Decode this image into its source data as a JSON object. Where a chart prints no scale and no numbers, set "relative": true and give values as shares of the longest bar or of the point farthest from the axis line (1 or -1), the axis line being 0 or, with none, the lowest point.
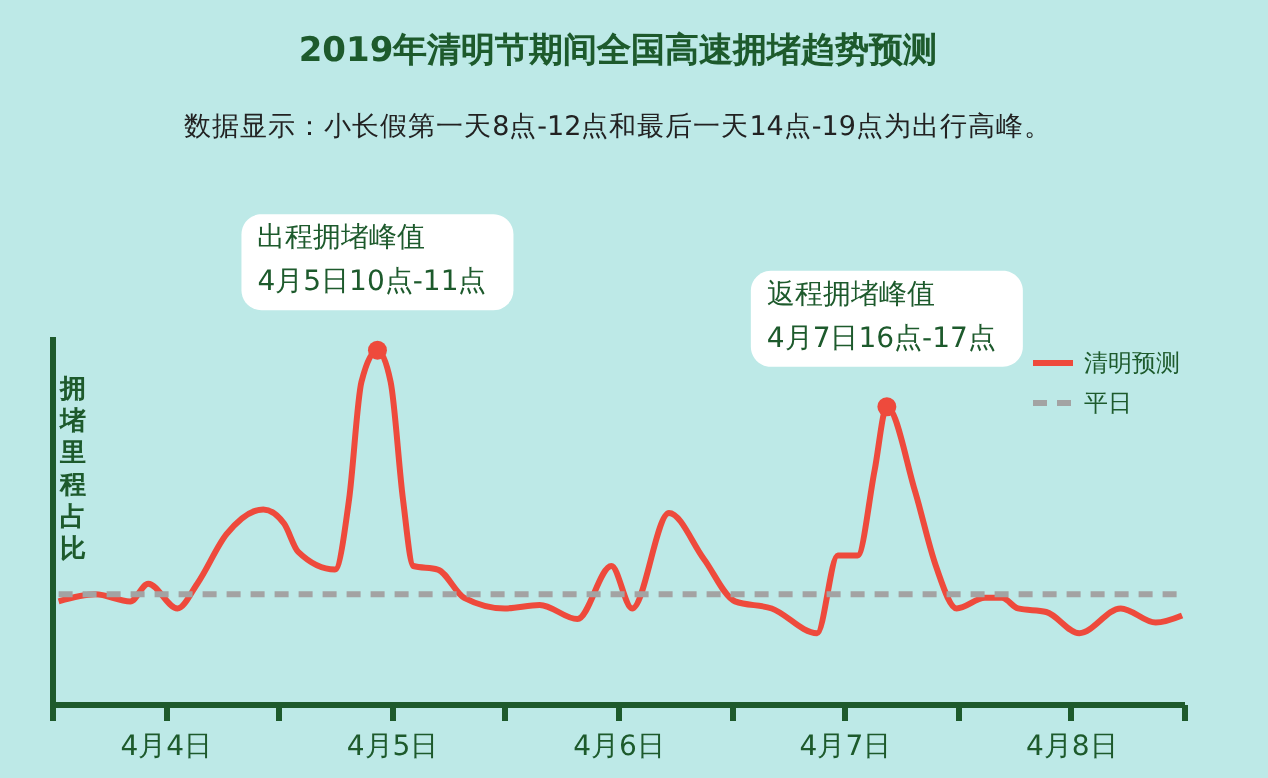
{
  "chart_data": {
    "type": "line",
    "title": "2019年清明节期间全国高速拥堵趋势预测",
    "subtitle": "数据显示：小长假第一天8点-12点和最后一天14点-19点为出行高峰。",
    "ylabel": "拥堵里程占比",
    "relative": true,
    "legend": "top right",
    "xlim": [
      "--04-04T00:00",
      "--04-09T00:00"
    ],
    "xticks": [
      {
        "value": "--04-04T00:00",
        "label": null
      },
      {
        "value": "--04-04T12:00",
        "label": "4月4日"
      },
      {
        "value": "--04-05T00:00",
        "label": null
      },
      {
        "value": "--04-05T12:00",
        "label": "4月5日"
      },
      {
        "value": "--04-06T00:00",
        "label": null
      },
      {
        "value": "--04-06T12:00",
        "label": "4月6日"
      },
      {
        "value": "--04-07T00:00",
        "label": null
      },
      {
        "value": "--04-07T12:00",
        "label": "4月7日"
      },
      {
        "value": "--04-08T00:00",
        "label": null
      },
      {
        "value": "--04-08T12:00",
        "label": "4月8日"
      },
      {
        "value": "--04-09T00:00",
        "label": null
      }
    ],
    "series": [
      {
        "name": "清明预测",
        "color": "#ee4a3c",
        "line_style": "solid",
        "x": [
          "--04-04T00:42",
          "--04-04T04:36",
          "--04-04T08:18",
          "--04-04T10:12",
          "--04-04T13:18",
          "--04-04T15:24",
          "--04-04T18:30",
          "--04-04T22:24",
          "--04-05T00:36",
          "--04-05T02:06",
          "--04-05T06:00",
          "--04-05T07:30",
          "--04-05T08:48",
          "--04-05T10:30",
          "--04-05T11:54",
          "--04-05T13:12",
          "--04-05T14:18",
          "--04-05T16:54",
          "--04-05T19:42",
          "--04-06T00:00",
          "--04-06T03:42",
          "--04-06T07:42",
          "--04-06T11:18",
          "--04-06T13:30",
          "--04-06T17:24",
          "--04-06T21:06",
          "--04-07T00:24",
          "--04-07T04:18",
          "--04-07T09:06",
          "--04-07T11:18",
          "--04-07T13:24",
          "--04-07T15:12",
          "--04-07T16:30",
          "--04-07T19:30",
          "--04-07T21:42",
          "--04-07T23:54",
          "--04-08T02:54",
          "--04-08T04:42",
          "--04-08T06:24",
          "--04-08T09:24",
          "--04-08T12:54",
          "--04-08T17:18",
          "--04-08T21:00",
          "--04-08T23:48"
        ],
        "values": [
          0.29,
          0.31,
          0.29,
          0.34,
          0.27,
          0.34,
          0.48,
          0.55,
          0.51,
          0.43,
          0.38,
          0.58,
          0.91,
          1,
          0.91,
          0.58,
          0.39,
          0.38,
          0.3,
          0.27,
          0.28,
          0.24,
          0.39,
          0.27,
          0.54,
          0.41,
          0.29,
          0.27,
          0.2,
          0.42,
          0.42,
          0.66,
          0.84,
          0.6,
          0.39,
          0.27,
          0.3,
          0.3,
          0.27,
          0.26,
          0.2,
          0.27,
          0.23,
          0.25
        ]
      },
      {
        "name": "平日",
        "color": "#a3a3a3",
        "line_style": "dashed",
        "x": [
          "--04-04T00:42",
          "--04-08T23:48"
        ],
        "values": [
          0.31,
          0.31
        ]
      }
    ],
    "annotations": [
      {
        "text": "出程拥堵峰值\n4月5日10点-11点",
        "x": "--04-05T10:30",
        "y": 1
      },
      {
        "text": "返程拥堵峰值\n4月7日16点-17点",
        "x": "--04-07T16:30",
        "y": 0.84
      }
    ]
  }
}
